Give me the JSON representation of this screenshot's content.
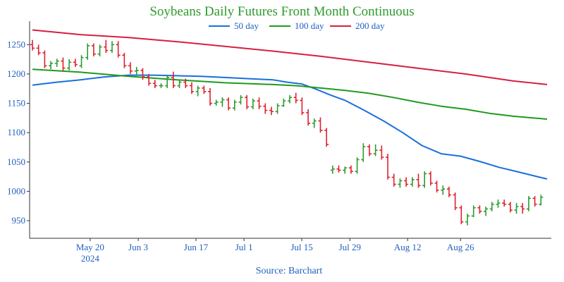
{
  "chart_data": {
    "type": "line",
    "title": "Soybeans Daily Futures Front Month Continuous",
    "source": "Source: Barchart",
    "legend_position": "top-center",
    "colors": {
      "up": "#2e9b2e",
      "down": "#e0202d",
      "ma50": "#1a6fdb",
      "ma100": "#1f9a1f",
      "ma200": "#d6203f"
    },
    "yaxis": {
      "min": 920,
      "max": 1290,
      "ticks": [
        950,
        1000,
        1050,
        1100,
        1150,
        1200,
        1250
      ]
    },
    "xaxis": {
      "min": 0,
      "max": 107,
      "ticks": [
        {
          "x": 12,
          "label": "May 20",
          "sublabel": "2024"
        },
        {
          "x": 22,
          "label": "Jun 3",
          "sublabel": ""
        },
        {
          "x": 34,
          "label": "Jun 17",
          "sublabel": ""
        },
        {
          "x": 44,
          "label": "Jul 1",
          "sublabel": ""
        },
        {
          "x": 56,
          "label": "Jul 15",
          "sublabel": ""
        },
        {
          "x": 66,
          "label": "Jul 29",
          "sublabel": ""
        },
        {
          "x": 78,
          "label": "Aug 12",
          "sublabel": ""
        },
        {
          "x": 89,
          "label": "Aug 26",
          "sublabel": ""
        }
      ]
    },
    "series": [
      {
        "name": "50 day",
        "key": "ma50",
        "points": [
          [
            0,
            1181
          ],
          [
            5,
            1186
          ],
          [
            10,
            1190
          ],
          [
            15,
            1195
          ],
          [
            20,
            1198
          ],
          [
            25,
            1198
          ],
          [
            30,
            1197
          ],
          [
            35,
            1196
          ],
          [
            40,
            1194
          ],
          [
            45,
            1192
          ],
          [
            50,
            1190
          ],
          [
            53,
            1186
          ],
          [
            56,
            1183
          ],
          [
            59,
            1174
          ],
          [
            62,
            1164
          ],
          [
            65,
            1155
          ],
          [
            69,
            1138
          ],
          [
            73,
            1120
          ],
          [
            77,
            1100
          ],
          [
            81,
            1078
          ],
          [
            85,
            1064
          ],
          [
            89,
            1060
          ],
          [
            93,
            1051
          ],
          [
            97,
            1041
          ],
          [
            101,
            1033
          ],
          [
            105,
            1025
          ],
          [
            107,
            1021
          ]
        ]
      },
      {
        "name": "100 day",
        "key": "ma100",
        "points": [
          [
            0,
            1208
          ],
          [
            10,
            1203
          ],
          [
            20,
            1196
          ],
          [
            30,
            1190
          ],
          [
            40,
            1185
          ],
          [
            50,
            1182
          ],
          [
            55,
            1180
          ],
          [
            60,
            1176
          ],
          [
            65,
            1172
          ],
          [
            70,
            1167
          ],
          [
            75,
            1160
          ],
          [
            80,
            1152
          ],
          [
            85,
            1145
          ],
          [
            90,
            1140
          ],
          [
            95,
            1133
          ],
          [
            100,
            1128
          ],
          [
            107,
            1123
          ]
        ]
      },
      {
        "name": "200 day",
        "key": "ma200",
        "points": [
          [
            0,
            1275
          ],
          [
            10,
            1267
          ],
          [
            20,
            1262
          ],
          [
            30,
            1255
          ],
          [
            40,
            1247
          ],
          [
            50,
            1239
          ],
          [
            60,
            1230
          ],
          [
            70,
            1220
          ],
          [
            80,
            1210
          ],
          [
            90,
            1200
          ],
          [
            100,
            1188
          ],
          [
            107,
            1182
          ]
        ]
      }
    ],
    "ohlc": [
      [
        0,
        1250,
        1258,
        1240,
        1244
      ],
      [
        1,
        1244,
        1250,
        1232,
        1236
      ],
      [
        2,
        1236,
        1240,
        1210,
        1214
      ],
      [
        3,
        1214,
        1222,
        1208,
        1218
      ],
      [
        4,
        1218,
        1226,
        1212,
        1222
      ],
      [
        5,
        1222,
        1228,
        1205,
        1210
      ],
      [
        6,
        1210,
        1225,
        1206,
        1220
      ],
      [
        7,
        1220,
        1226,
        1212,
        1216
      ],
      [
        8,
        1214,
        1232,
        1210,
        1228
      ],
      [
        9,
        1228,
        1252,
        1224,
        1248
      ],
      [
        10,
        1248,
        1252,
        1230,
        1234
      ],
      [
        11,
        1234,
        1250,
        1230,
        1246
      ],
      [
        12,
        1246,
        1258,
        1236,
        1240
      ],
      [
        13,
        1240,
        1256,
        1236,
        1250
      ],
      [
        14,
        1250,
        1256,
        1228,
        1232
      ],
      [
        15,
        1232,
        1236,
        1210,
        1214
      ],
      [
        16,
        1214,
        1220,
        1200,
        1205
      ],
      [
        17,
        1205,
        1212,
        1198,
        1206
      ],
      [
        18,
        1206,
        1210,
        1190,
        1195
      ],
      [
        19,
        1195,
        1200,
        1180,
        1184
      ],
      [
        20,
        1184,
        1190,
        1176,
        1180
      ],
      [
        21,
        1180,
        1184,
        1176,
        1180
      ],
      [
        22,
        1180,
        1198,
        1176,
        1194
      ],
      [
        23,
        1194,
        1204,
        1176,
        1180
      ],
      [
        24,
        1180,
        1190,
        1176,
        1186
      ],
      [
        25,
        1186,
        1192,
        1176,
        1180
      ],
      [
        26,
        1180,
        1186,
        1166,
        1170
      ],
      [
        27,
        1170,
        1180,
        1162,
        1176
      ],
      [
        28,
        1176,
        1180,
        1166,
        1170
      ],
      [
        29,
        1170,
        1176,
        1146,
        1150
      ],
      [
        30,
        1150,
        1156,
        1146,
        1152
      ],
      [
        31,
        1152,
        1160,
        1144,
        1156
      ],
      [
        32,
        1156,
        1160,
        1138,
        1142
      ],
      [
        33,
        1142,
        1156,
        1138,
        1152
      ],
      [
        34,
        1152,
        1164,
        1148,
        1160
      ],
      [
        35,
        1160,
        1164,
        1140,
        1144
      ],
      [
        36,
        1144,
        1158,
        1140,
        1154
      ],
      [
        37,
        1154,
        1160,
        1140,
        1145
      ],
      [
        38,
        1145,
        1150,
        1132,
        1138
      ],
      [
        39,
        1138,
        1144,
        1130,
        1136
      ],
      [
        40,
        1136,
        1150,
        1132,
        1146
      ],
      [
        41,
        1146,
        1158,
        1144,
        1154
      ],
      [
        42,
        1154,
        1164,
        1150,
        1160
      ],
      [
        43,
        1160,
        1168,
        1150,
        1155
      ],
      [
        44,
        1155,
        1160,
        1130,
        1134
      ],
      [
        45,
        1134,
        1140,
        1112,
        1116
      ],
      [
        46,
        1116,
        1124,
        1108,
        1120
      ],
      [
        47,
        1120,
        1126,
        1100,
        1104
      ],
      [
        48,
        1104,
        1108,
        1076,
        1080
      ],
      [
        49,
        1036,
        1044,
        1030,
        1038
      ],
      [
        50,
        1038,
        1044,
        1032,
        1036
      ],
      [
        51,
        1036,
        1042,
        1030,
        1040
      ],
      [
        52,
        1040,
        1044,
        1030,
        1034
      ],
      [
        53,
        1034,
        1058,
        1030,
        1054
      ],
      [
        54,
        1054,
        1082,
        1050,
        1076
      ],
      [
        55,
        1076,
        1080,
        1060,
        1064
      ],
      [
        56,
        1064,
        1080,
        1060,
        1070
      ],
      [
        57,
        1070,
        1078,
        1054,
        1058
      ],
      [
        58,
        1058,
        1064,
        1020,
        1024
      ],
      [
        59,
        1024,
        1030,
        1008,
        1012
      ],
      [
        60,
        1012,
        1022,
        1006,
        1018
      ],
      [
        61,
        1018,
        1024,
        1008,
        1012
      ],
      [
        62,
        1012,
        1024,
        1008,
        1020
      ],
      [
        63,
        1020,
        1030,
        1006,
        1010
      ],
      [
        64,
        1010,
        1034,
        1006,
        1030
      ],
      [
        65,
        1030,
        1034,
        1010,
        1014
      ],
      [
        66,
        1014,
        1018,
        998,
        1002
      ],
      [
        67,
        1002,
        1010,
        994,
        1004
      ],
      [
        68,
        1004,
        1008,
        990,
        994
      ],
      [
        69,
        994,
        998,
        968,
        972
      ],
      [
        70,
        972,
        976,
        944,
        948
      ],
      [
        71,
        948,
        962,
        942,
        958
      ],
      [
        72,
        958,
        976,
        956,
        972
      ],
      [
        73,
        972,
        976,
        962,
        966
      ],
      [
        74,
        966,
        974,
        958,
        970
      ],
      [
        75,
        970,
        982,
        966,
        978
      ],
      [
        76,
        978,
        986,
        972,
        980
      ],
      [
        77,
        980,
        986,
        974,
        978
      ],
      [
        78,
        978,
        982,
        964,
        968
      ],
      [
        79,
        968,
        980,
        962,
        974
      ],
      [
        80,
        974,
        980,
        962,
        970
      ],
      [
        81,
        970,
        992,
        966,
        988
      ],
      [
        82,
        988,
        992,
        974,
        978
      ],
      [
        83,
        978,
        994,
        976,
        990
      ]
    ]
  }
}
